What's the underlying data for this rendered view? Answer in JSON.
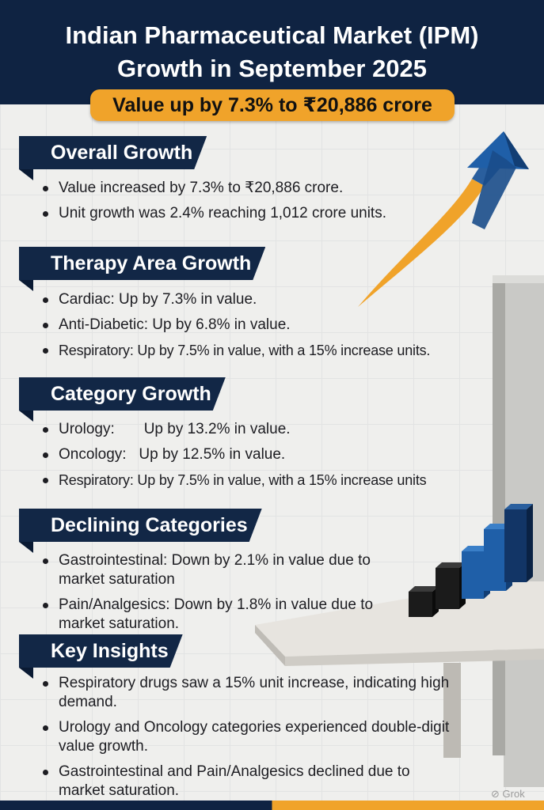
{
  "header": {
    "title_line1": "Indian Pharmaceutical Market (IPM)",
    "title_line2": "Growth in September 2025",
    "subtitle": "Value up by 7.3% to ₹20,886 crore"
  },
  "sections": {
    "overall": {
      "heading": "Overall Growth",
      "items": [
        "Value increased by 7.3% to ₹20,886 crore.",
        "Unit growth was 2.4% reaching 1,012 crore units."
      ]
    },
    "therapy": {
      "heading": "Therapy Area Growth",
      "items": [
        "Cardiac:    Up by 7.3% in value.",
        "Anti-Diabetic: Up by 6.8% in value.",
        "Respiratory: Up by 7.5% in value, with a 15% increase units."
      ]
    },
    "category": {
      "heading": "Category Growth",
      "items": [
        "Urology:       Up by 13.2% in value.",
        "Oncology:   Up by 12.5% in value.",
        "Respiratory: Up by 7.5% in value, with a 15% increase units"
      ]
    },
    "declining": {
      "heading": "Declining Categories",
      "items": [
        "Gastrointestinal: Down by 2.1% in value due to market saturation",
        "Pain/Analgesics: Down by 1.8% in value due to market saturation."
      ]
    },
    "insights": {
      "heading": "Key Insights",
      "items": [
        "Respiratory drugs saw a 15% unit increase, indicating high demand.",
        "Urology and Oncology categories experienced double-digit value growth.",
        "Gastrointestinal and Pain/Analgesics declined due to market saturation."
      ]
    }
  },
  "decor": {
    "arrow_icon": "growth-arrow-icon",
    "bars_icon": "bar-blocks-icon",
    "colors": {
      "navy": "#0f2342",
      "orange": "#f0a32a",
      "blue": "#1f5fa8"
    }
  },
  "watermark": "Grok"
}
